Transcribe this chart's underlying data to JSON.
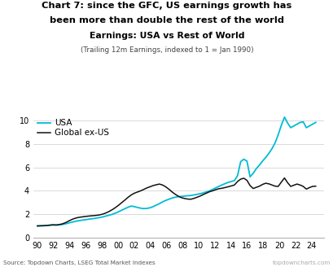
{
  "title_line1": "Chart 7: since the GFC, US earnings growth has",
  "title_line2": "been more than double the rest of the world",
  "subtitle1": "Earnings: USA vs Rest of World",
  "subtitle2": "(Trailing 12m Earnings, indexed to 1 = Jan 1990)",
  "source_left": "Source: Topdown Charts, LSEG Total Market Indexes",
  "source_right": "topdowncharts.com",
  "usa_color": "#00bcd4",
  "global_color": "#111111",
  "legend_usa": "USA",
  "legend_global": "Global ex-US",
  "ylim": [
    0,
    10.5
  ],
  "yticks": [
    0,
    2,
    4,
    6,
    8,
    10
  ],
  "xtick_labels": [
    "90",
    "92",
    "94",
    "96",
    "98",
    "00",
    "02",
    "04",
    "06",
    "08",
    "10",
    "12",
    "14",
    "16",
    "18",
    "20",
    "22",
    "24"
  ],
  "background_color": "#ffffff",
  "usa_data": [
    1.0,
    1.01,
    1.02,
    1.04,
    1.06,
    1.08,
    1.07,
    1.09,
    1.12,
    1.18,
    1.25,
    1.32,
    1.38,
    1.44,
    1.48,
    1.52,
    1.56,
    1.6,
    1.63,
    1.68,
    1.72,
    1.78,
    1.85,
    1.92,
    2.0,
    2.1,
    2.22,
    2.35,
    2.48,
    2.6,
    2.7,
    2.65,
    2.58,
    2.52,
    2.48,
    2.5,
    2.55,
    2.65,
    2.78,
    2.9,
    3.05,
    3.18,
    3.28,
    3.38,
    3.45,
    3.5,
    3.52,
    3.55,
    3.58,
    3.6,
    3.65,
    3.7,
    3.75,
    3.82,
    3.9,
    4.0,
    4.12,
    4.25,
    4.38,
    4.5,
    4.62,
    4.72,
    4.8,
    4.88,
    5.3,
    6.5,
    6.7,
    6.55,
    5.2,
    5.5,
    5.9,
    6.2,
    6.55,
    6.85,
    7.2,
    7.6,
    8.1,
    8.8,
    9.6,
    10.3,
    9.8,
    9.4,
    9.55,
    9.7,
    9.85,
    9.9,
    9.4,
    9.55,
    9.7,
    9.85
  ],
  "global_data": [
    1.0,
    1.01,
    1.02,
    1.04,
    1.07,
    1.1,
    1.08,
    1.12,
    1.18,
    1.28,
    1.42,
    1.55,
    1.65,
    1.72,
    1.76,
    1.8,
    1.83,
    1.86,
    1.88,
    1.91,
    1.95,
    2.02,
    2.12,
    2.25,
    2.4,
    2.58,
    2.78,
    3.0,
    3.22,
    3.45,
    3.65,
    3.8,
    3.9,
    4.0,
    4.12,
    4.25,
    4.35,
    4.45,
    4.52,
    4.58,
    4.5,
    4.35,
    4.15,
    3.92,
    3.72,
    3.55,
    3.42,
    3.35,
    3.3,
    3.28,
    3.35,
    3.45,
    3.55,
    3.68,
    3.8,
    3.92,
    4.0,
    4.1,
    4.18,
    4.22,
    4.28,
    4.35,
    4.42,
    4.5,
    4.8,
    5.0,
    5.08,
    4.9,
    4.45,
    4.2,
    4.3,
    4.4,
    4.55,
    4.65,
    4.6,
    4.5,
    4.4,
    4.38,
    4.75,
    5.1,
    4.7,
    4.38,
    4.48,
    4.58,
    4.5,
    4.38,
    4.15,
    4.28,
    4.38,
    4.4
  ]
}
